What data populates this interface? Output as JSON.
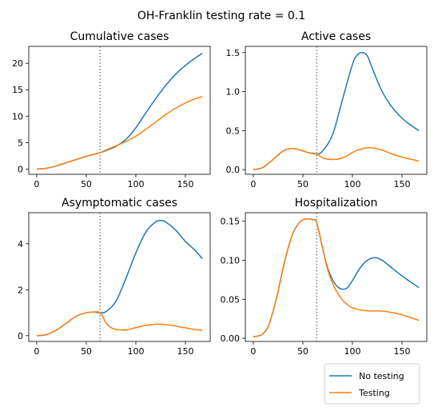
{
  "suptitle": "OH-Franklin testing rate = 0.1",
  "legend": {
    "placement": "bottom-right",
    "entries": [
      {
        "label": "No testing",
        "color": "#1f77b4"
      },
      {
        "label": "Testing",
        "color": "#ff7f0e"
      }
    ]
  },
  "intervention_line": {
    "x": 64,
    "style": "dotted",
    "color": "#808080"
  },
  "chart_data": [
    {
      "type": "line",
      "title": "Cumulative cases",
      "xlim": [
        -8,
        175
      ],
      "ylim": [
        -1,
        23.2
      ],
      "xticks": [
        0,
        50,
        100,
        150
      ],
      "yticks": [
        0,
        5,
        10,
        15,
        20
      ],
      "ytick_labels": [
        "0",
        "5",
        "10",
        "15",
        "20"
      ],
      "series": [
        {
          "name": "No testing",
          "x": [
            0,
            10,
            20,
            30,
            40,
            50,
            60,
            64,
            70,
            80,
            90,
            100,
            110,
            120,
            130,
            140,
            150,
            160,
            167
          ],
          "y": [
            0,
            0.15,
            0.6,
            1.2,
            1.8,
            2.4,
            2.9,
            3.1,
            3.5,
            4.3,
            5.6,
            7.8,
            10.6,
            13.3,
            15.8,
            17.9,
            19.6,
            21.0,
            21.9
          ]
        },
        {
          "name": "Testing",
          "x": [
            0,
            10,
            20,
            30,
            40,
            50,
            60,
            64,
            70,
            80,
            90,
            100,
            110,
            120,
            130,
            140,
            150,
            160,
            167
          ],
          "y": [
            0,
            0.15,
            0.6,
            1.2,
            1.8,
            2.4,
            2.9,
            3.1,
            3.6,
            4.4,
            5.2,
            6.2,
            7.5,
            8.9,
            10.3,
            11.5,
            12.5,
            13.3,
            13.7
          ]
        }
      ]
    },
    {
      "type": "line",
      "title": "Active cases",
      "xlim": [
        -8,
        175
      ],
      "ylim": [
        -0.06,
        1.58
      ],
      "xticks": [
        0,
        50,
        100,
        150
      ],
      "yticks": [
        0,
        0.5,
        1.0,
        1.5
      ],
      "ytick_labels": [
        "0.0",
        "0.5",
        "1.0",
        "1.5"
      ],
      "series": [
        {
          "name": "No testing",
          "x": [
            0,
            5,
            10,
            20,
            30,
            38,
            45,
            55,
            64,
            70,
            80,
            90,
            100,
            105,
            110,
            115,
            120,
            130,
            140,
            150,
            160,
            167
          ],
          "y": [
            0,
            0.01,
            0.03,
            0.13,
            0.24,
            0.27,
            0.26,
            0.22,
            0.2,
            0.24,
            0.45,
            0.9,
            1.35,
            1.47,
            1.5,
            1.46,
            1.3,
            1.0,
            0.8,
            0.66,
            0.56,
            0.5
          ]
        },
        {
          "name": "Testing",
          "x": [
            0,
            5,
            10,
            20,
            30,
            38,
            45,
            55,
            64,
            70,
            80,
            90,
            100,
            110,
            120,
            130,
            140,
            150,
            160,
            167
          ],
          "y": [
            0,
            0.01,
            0.03,
            0.13,
            0.24,
            0.27,
            0.26,
            0.22,
            0.2,
            0.15,
            0.13,
            0.15,
            0.22,
            0.27,
            0.28,
            0.25,
            0.2,
            0.16,
            0.13,
            0.11
          ]
        }
      ]
    },
    {
      "type": "line",
      "title": "Asymptomatic cases",
      "xlim": [
        -8,
        175
      ],
      "ylim": [
        -0.25,
        5.35
      ],
      "xticks": [
        0,
        50,
        100,
        150
      ],
      "yticks": [
        0,
        2,
        4
      ],
      "ytick_labels": [
        "0",
        "2",
        "4"
      ],
      "series": [
        {
          "name": "No testing",
          "x": [
            0,
            10,
            20,
            30,
            40,
            50,
            57,
            64,
            70,
            80,
            90,
            100,
            110,
            120,
            126,
            130,
            140,
            150,
            160,
            167
          ],
          "y": [
            0,
            0.05,
            0.25,
            0.55,
            0.85,
            1.0,
            1.03,
            1.0,
            1.05,
            1.5,
            2.5,
            3.6,
            4.5,
            4.95,
            5.0,
            4.95,
            4.6,
            4.1,
            3.7,
            3.35
          ]
        },
        {
          "name": "Testing",
          "x": [
            0,
            10,
            20,
            30,
            40,
            50,
            57,
            64,
            70,
            75,
            80,
            90,
            100,
            110,
            120,
            130,
            140,
            150,
            160,
            167
          ],
          "y": [
            0,
            0.05,
            0.25,
            0.55,
            0.85,
            1.0,
            1.03,
            1.0,
            0.55,
            0.35,
            0.27,
            0.25,
            0.35,
            0.45,
            0.5,
            0.48,
            0.42,
            0.34,
            0.27,
            0.23
          ]
        }
      ]
    },
    {
      "type": "line",
      "title": "Hospitalization",
      "xlim": [
        -8,
        175
      ],
      "ylim": [
        -0.004,
        0.161
      ],
      "xticks": [
        0,
        50,
        100,
        150
      ],
      "yticks": [
        0,
        0.05,
        0.1,
        0.15
      ],
      "ytick_labels": [
        "0.00",
        "0.05",
        "0.10",
        "0.15"
      ],
      "series": [
        {
          "name": "No testing",
          "x": [
            0,
            5,
            10,
            15,
            20,
            25,
            30,
            35,
            40,
            45,
            50,
            55,
            60,
            64,
            70,
            75,
            80,
            85,
            90,
            95,
            100,
            105,
            110,
            115,
            120,
            125,
            130,
            140,
            150,
            160,
            167
          ],
          "y": [
            0.002,
            0.003,
            0.006,
            0.015,
            0.035,
            0.06,
            0.09,
            0.115,
            0.135,
            0.146,
            0.152,
            0.153,
            0.152,
            0.148,
            0.115,
            0.09,
            0.075,
            0.066,
            0.063,
            0.065,
            0.074,
            0.085,
            0.094,
            0.1,
            0.103,
            0.103,
            0.1,
            0.09,
            0.08,
            0.071,
            0.065
          ]
        },
        {
          "name": "Testing",
          "x": [
            0,
            5,
            10,
            15,
            20,
            25,
            30,
            35,
            40,
            45,
            50,
            55,
            60,
            64,
            70,
            75,
            80,
            85,
            90,
            95,
            100,
            110,
            120,
            130,
            140,
            150,
            160,
            167
          ],
          "y": [
            0.002,
            0.003,
            0.006,
            0.015,
            0.035,
            0.06,
            0.09,
            0.115,
            0.135,
            0.146,
            0.152,
            0.153,
            0.152,
            0.148,
            0.115,
            0.088,
            0.07,
            0.058,
            0.049,
            0.043,
            0.039,
            0.036,
            0.035,
            0.035,
            0.033,
            0.03,
            0.026,
            0.023
          ]
        }
      ]
    }
  ]
}
